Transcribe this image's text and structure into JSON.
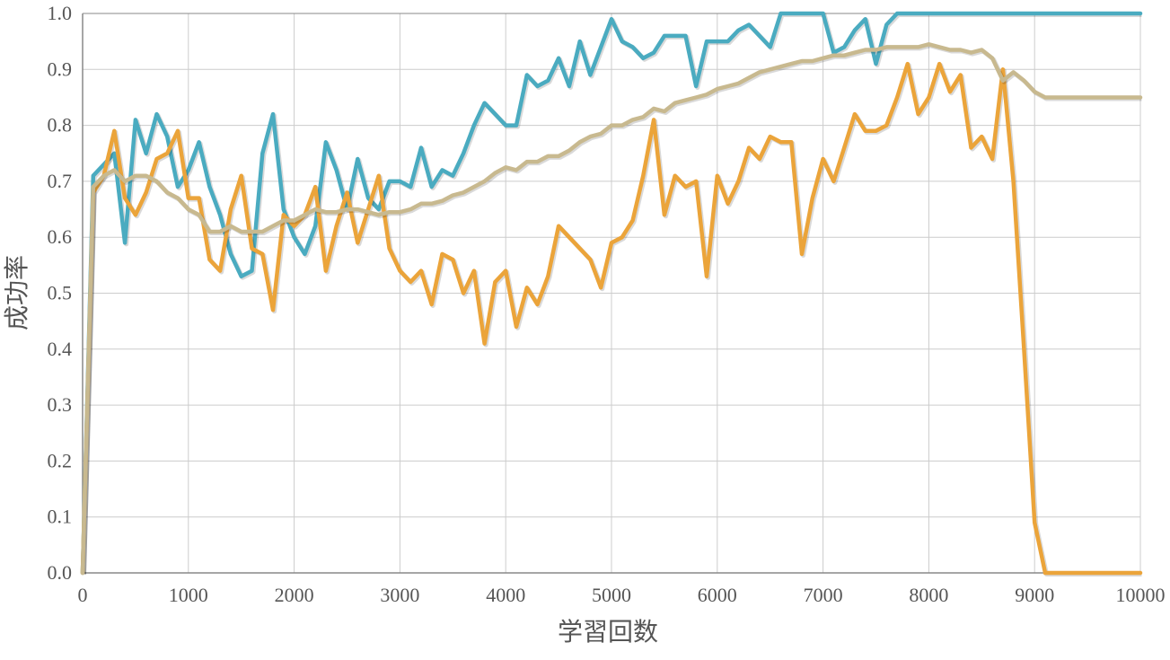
{
  "chart_data": {
    "type": "line",
    "title": "",
    "xlabel": "学習回数",
    "ylabel": "成功率",
    "xlim": [
      0,
      10000
    ],
    "ylim": [
      0,
      1.0
    ],
    "grid": true,
    "legend": "none",
    "x_ticks": [
      "0",
      "1000",
      "2000",
      "3000",
      "4000",
      "5000",
      "6000",
      "7000",
      "8000",
      "9000",
      "10000"
    ],
    "y_ticks": [
      "0.0",
      "0.1",
      "0.2",
      "0.3",
      "0.4",
      "0.5",
      "0.6",
      "0.7",
      "0.8",
      "0.9",
      "1.0"
    ],
    "colors": {
      "series_blue": "#4aabc0",
      "series_orange": "#eba43a",
      "series_tan": "#c8b98f",
      "grid": "#cccccc",
      "axis": "#888888"
    },
    "series": [
      {
        "color": "#4aabc0",
        "x": [
          0,
          100,
          200,
          300,
          400,
          500,
          600,
          700,
          800,
          900,
          1000,
          1100,
          1200,
          1300,
          1400,
          1500,
          1600,
          1700,
          1800,
          1900,
          2000,
          2100,
          2200,
          2300,
          2400,
          2500,
          2600,
          2700,
          2800,
          2900,
          3000,
          3100,
          3200,
          3300,
          3400,
          3500,
          3600,
          3700,
          3800,
          3900,
          4000,
          4100,
          4200,
          4300,
          4400,
          4500,
          4600,
          4700,
          4800,
          4900,
          5000,
          5100,
          5200,
          5300,
          5400,
          5500,
          5600,
          5700,
          5800,
          5900,
          6000,
          6100,
          6200,
          6300,
          6400,
          6500,
          6600,
          6700,
          6800,
          6900,
          7000,
          7100,
          7200,
          7300,
          7400,
          7500,
          7600,
          7700,
          7800,
          7900,
          8000,
          9000,
          10000
        ],
        "y": [
          0.0,
          0.71,
          0.73,
          0.75,
          0.59,
          0.81,
          0.75,
          0.82,
          0.78,
          0.69,
          0.72,
          0.77,
          0.69,
          0.64,
          0.57,
          0.53,
          0.54,
          0.75,
          0.82,
          0.65,
          0.6,
          0.57,
          0.62,
          0.77,
          0.72,
          0.65,
          0.74,
          0.67,
          0.65,
          0.7,
          0.7,
          0.69,
          0.76,
          0.69,
          0.72,
          0.71,
          0.75,
          0.8,
          0.84,
          0.82,
          0.8,
          0.8,
          0.89,
          0.87,
          0.88,
          0.92,
          0.87,
          0.95,
          0.89,
          0.94,
          0.99,
          0.95,
          0.94,
          0.92,
          0.93,
          0.96,
          0.96,
          0.96,
          0.87,
          0.95,
          0.95,
          0.95,
          0.97,
          0.98,
          0.96,
          0.94,
          1.0,
          1.0,
          1.0,
          1.0,
          1.0,
          0.93,
          0.94,
          0.97,
          0.99,
          0.91,
          0.98,
          1.0,
          1.0,
          1.0,
          1.0,
          1.0,
          1.0
        ]
      },
      {
        "color": "#eba43a",
        "x": [
          0,
          100,
          200,
          300,
          400,
          500,
          600,
          700,
          800,
          900,
          1000,
          1100,
          1200,
          1300,
          1400,
          1500,
          1600,
          1700,
          1800,
          1900,
          2000,
          2100,
          2200,
          2300,
          2400,
          2500,
          2600,
          2700,
          2800,
          2900,
          3000,
          3100,
          3200,
          3300,
          3400,
          3500,
          3600,
          3700,
          3800,
          3900,
          4000,
          4100,
          4200,
          4300,
          4400,
          4500,
          4600,
          4700,
          4800,
          4900,
          5000,
          5100,
          5200,
          5300,
          5400,
          5500,
          5600,
          5700,
          5800,
          5900,
          6000,
          6100,
          6200,
          6300,
          6400,
          6500,
          6600,
          6700,
          6800,
          6900,
          7000,
          7100,
          7200,
          7300,
          7400,
          7500,
          7600,
          7700,
          7800,
          7900,
          8000,
          8100,
          8200,
          8300,
          8400,
          8500,
          8600,
          8700,
          8800,
          8900,
          9000,
          9100,
          10000
        ],
        "y": [
          0.0,
          0.68,
          0.71,
          0.79,
          0.67,
          0.64,
          0.68,
          0.74,
          0.75,
          0.79,
          0.67,
          0.67,
          0.56,
          0.54,
          0.65,
          0.71,
          0.58,
          0.57,
          0.47,
          0.64,
          0.62,
          0.64,
          0.69,
          0.54,
          0.62,
          0.68,
          0.59,
          0.65,
          0.71,
          0.58,
          0.54,
          0.52,
          0.54,
          0.48,
          0.57,
          0.56,
          0.5,
          0.54,
          0.41,
          0.52,
          0.54,
          0.44,
          0.51,
          0.48,
          0.53,
          0.62,
          0.6,
          0.58,
          0.56,
          0.51,
          0.59,
          0.6,
          0.63,
          0.71,
          0.81,
          0.64,
          0.71,
          0.69,
          0.7,
          0.53,
          0.71,
          0.66,
          0.7,
          0.76,
          0.74,
          0.78,
          0.77,
          0.77,
          0.57,
          0.67,
          0.74,
          0.7,
          0.76,
          0.82,
          0.79,
          0.79,
          0.8,
          0.85,
          0.91,
          0.82,
          0.85,
          0.91,
          0.86,
          0.89,
          0.76,
          0.78,
          0.74,
          0.9,
          0.7,
          0.4,
          0.09,
          0.0,
          0.0
        ]
      },
      {
        "color": "#c8b98f",
        "x": [
          0,
          100,
          200,
          300,
          400,
          500,
          600,
          700,
          800,
          900,
          1000,
          1100,
          1200,
          1300,
          1400,
          1500,
          1600,
          1700,
          1800,
          1900,
          2000,
          2100,
          2200,
          2300,
          2400,
          2500,
          2600,
          2700,
          2800,
          2900,
          3000,
          3100,
          3200,
          3300,
          3400,
          3500,
          3600,
          3700,
          3800,
          3900,
          4000,
          4100,
          4200,
          4300,
          4400,
          4500,
          4600,
          4700,
          4800,
          4900,
          5000,
          5100,
          5200,
          5300,
          5400,
          5500,
          5600,
          5700,
          5800,
          5900,
          6000,
          6100,
          6200,
          6300,
          6400,
          6500,
          6600,
          6700,
          6800,
          6900,
          7000,
          7100,
          7200,
          7300,
          7400,
          7500,
          7600,
          7700,
          7800,
          7900,
          8000,
          8100,
          8200,
          8300,
          8400,
          8500,
          8600,
          8700,
          8800,
          8900,
          9000,
          9100,
          9200,
          10000
        ],
        "y": [
          0.0,
          0.69,
          0.71,
          0.72,
          0.7,
          0.71,
          0.71,
          0.7,
          0.68,
          0.67,
          0.65,
          0.64,
          0.61,
          0.61,
          0.62,
          0.61,
          0.61,
          0.61,
          0.62,
          0.63,
          0.63,
          0.64,
          0.65,
          0.645,
          0.645,
          0.65,
          0.65,
          0.645,
          0.64,
          0.645,
          0.645,
          0.65,
          0.66,
          0.66,
          0.665,
          0.675,
          0.68,
          0.69,
          0.7,
          0.715,
          0.725,
          0.72,
          0.735,
          0.735,
          0.745,
          0.745,
          0.755,
          0.77,
          0.78,
          0.785,
          0.8,
          0.8,
          0.81,
          0.815,
          0.83,
          0.825,
          0.84,
          0.845,
          0.85,
          0.855,
          0.865,
          0.87,
          0.875,
          0.885,
          0.895,
          0.9,
          0.905,
          0.91,
          0.915,
          0.915,
          0.92,
          0.925,
          0.925,
          0.93,
          0.935,
          0.935,
          0.94,
          0.94,
          0.94,
          0.94,
          0.945,
          0.94,
          0.935,
          0.935,
          0.93,
          0.935,
          0.92,
          0.88,
          0.895,
          0.88,
          0.86,
          0.85,
          0.85,
          0.85
        ]
      }
    ]
  }
}
